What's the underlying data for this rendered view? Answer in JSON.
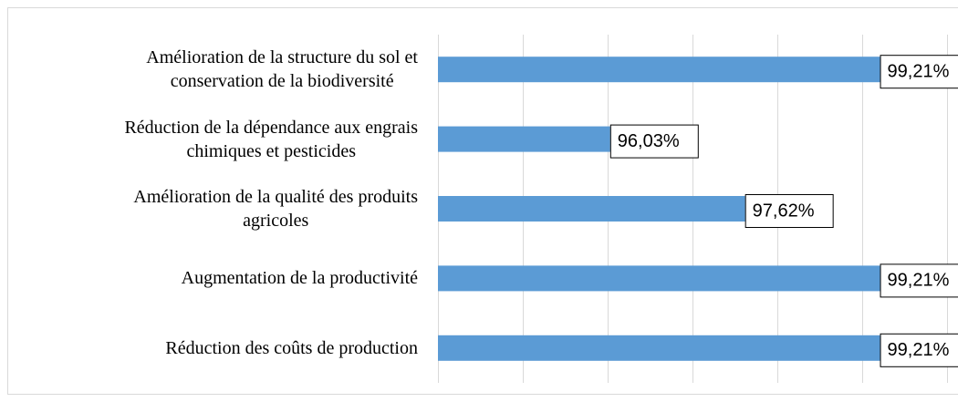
{
  "chart_data": {
    "type": "bar",
    "orientation": "horizontal",
    "categories": [
      "Amélioration de la structure du sol et\nconservation de la biodiversité",
      "Réduction de la dépendance aux engrais\nchimiques et pesticides",
      "Amélioration de la qualité des produits\nagricoles",
      "Augmentation de la productivité",
      "Réduction des coûts de production"
    ],
    "values": [
      99.21,
      96.03,
      97.62,
      99.21,
      99.21
    ],
    "value_labels": [
      "99,21%",
      "96,03%",
      "97,62%",
      "99,21%",
      "99,21%"
    ],
    "color": "#5b9bd5",
    "xlim": [
      94,
      100
    ],
    "xticks": [
      94,
      95,
      96,
      97,
      98,
      99,
      100
    ],
    "grid": true
  }
}
